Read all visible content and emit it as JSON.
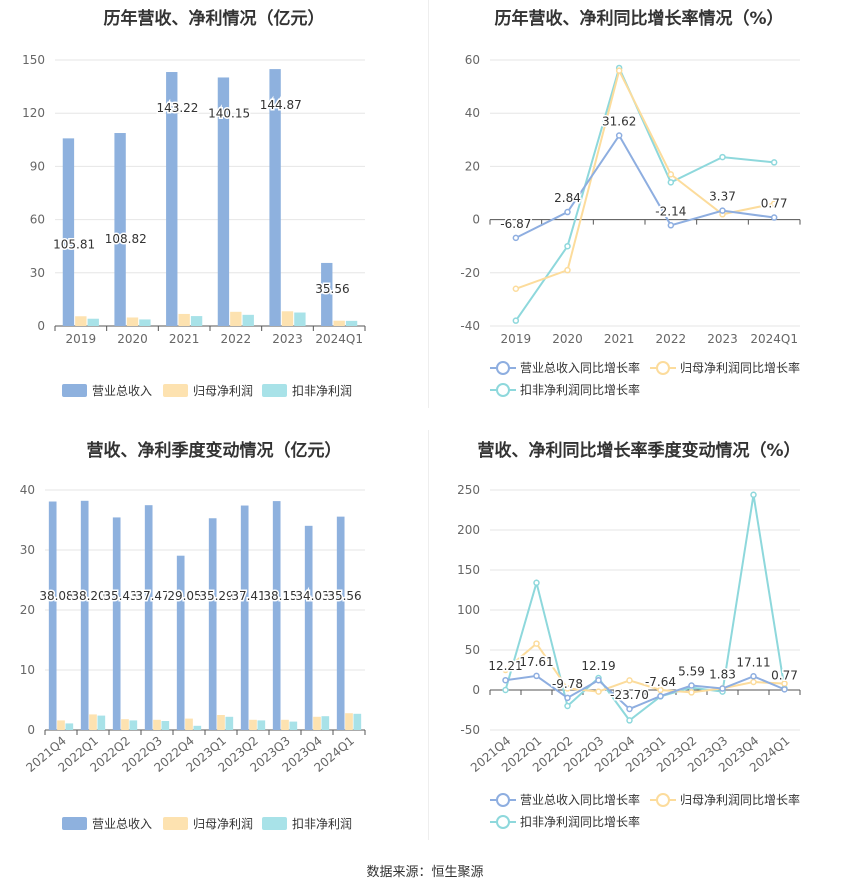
{
  "source": "数据来源：恒生聚源",
  "legend": {
    "bar": [
      "营业总收入",
      "归母净利润",
      "扣非净利润"
    ],
    "line": [
      "营业总收入同比增长率",
      "归母净利润同比增长率",
      "扣非净利润同比增长率"
    ]
  },
  "colors": {
    "revenue": "#8eb1de",
    "net": "#fde2b0",
    "deducted": "#a8e2e8",
    "line_revenue": "#8eaee0",
    "line_net": "#fcdc9c",
    "line_deducted": "#8ed8dc"
  },
  "chart_data": [
    {
      "type": "bar",
      "title": "历年营收、净利情况（亿元）",
      "categories": [
        "2019",
        "2020",
        "2021",
        "2022",
        "2023",
        "2024Q1"
      ],
      "ylim": [
        0,
        150
      ],
      "yticks": [
        0,
        30,
        60,
        90,
        120,
        150
      ],
      "series": [
        {
          "name": "营业总收入",
          "values": [
            105.81,
            108.82,
            143.22,
            140.15,
            144.87,
            35.56
          ]
        },
        {
          "name": "归母净利润",
          "values": [
            5.5,
            4.8,
            6.8,
            8.0,
            8.3,
            3.0
          ]
        },
        {
          "name": "扣非净利润",
          "values": [
            4.1,
            3.7,
            5.6,
            6.3,
            7.6,
            2.9
          ]
        }
      ],
      "data_labels": [
        "105.81",
        "108.82",
        "143.22",
        "140.15",
        "144.87",
        "35.56"
      ]
    },
    {
      "type": "line",
      "title": "历年营收、净利同比增长率情况（%）",
      "categories": [
        "2019",
        "2020",
        "2021",
        "2022",
        "2023",
        "2024Q1"
      ],
      "ylim": [
        -40,
        60
      ],
      "yticks": [
        -40,
        -20,
        0,
        20,
        40,
        60
      ],
      "series": [
        {
          "name": "营业总收入同比增长率",
          "values": [
            -6.87,
            2.84,
            31.62,
            -2.14,
            3.37,
            0.77
          ]
        },
        {
          "name": "归母净利润同比增长率",
          "values": [
            -26,
            -19,
            56,
            17,
            2,
            6
          ]
        },
        {
          "name": "扣非净利润同比增长率",
          "values": [
            -38,
            -10,
            57,
            14,
            23.5,
            21.5
          ]
        }
      ],
      "data_labels": [
        "-6.87",
        "2.84",
        "31.62",
        "-2.14",
        "3.37",
        "0.77"
      ]
    },
    {
      "type": "bar",
      "title": "营收、净利季度变动情况（亿元）",
      "categories": [
        "2021Q4",
        "2022Q1",
        "2022Q2",
        "2022Q3",
        "2022Q4",
        "2023Q1",
        "2023Q2",
        "2023Q3",
        "2023Q4",
        "2024Q1"
      ],
      "ylim": [
        0,
        40
      ],
      "yticks": [
        0,
        10,
        20,
        30,
        40
      ],
      "series": [
        {
          "name": "营业总收入",
          "values": [
            38.08,
            38.2,
            35.43,
            37.47,
            29.05,
            35.29,
            37.41,
            38.15,
            34.03,
            35.56
          ]
        },
        {
          "name": "归母净利润",
          "values": [
            1.6,
            2.6,
            1.8,
            1.7,
            1.9,
            2.5,
            1.7,
            1.7,
            2.2,
            2.8
          ]
        },
        {
          "name": "扣非净利润",
          "values": [
            1.1,
            2.4,
            1.6,
            1.5,
            0.7,
            2.2,
            1.6,
            1.4,
            2.3,
            2.7
          ]
        }
      ],
      "data_labels": [
        "38.08",
        "38.20",
        "35.43",
        "37.47",
        "29.05",
        "35.29",
        "37.41",
        "38.15",
        "34.03",
        "35.56"
      ]
    },
    {
      "type": "line",
      "title": "营收、净利同比增长率季度变动情况（%）",
      "categories": [
        "2021Q4",
        "2022Q1",
        "2022Q2",
        "2022Q3",
        "2022Q4",
        "2023Q1",
        "2023Q2",
        "2023Q3",
        "2023Q4",
        "2024Q1"
      ],
      "ylim": [
        -50,
        250
      ],
      "yticks": [
        -50,
        0,
        50,
        100,
        150,
        200,
        250
      ],
      "series": [
        {
          "name": "营业总收入同比增长率",
          "values": [
            12.21,
            17.61,
            -9.78,
            12.19,
            -23.7,
            -7.64,
            5.59,
            1.83,
            17.11,
            0.77
          ]
        },
        {
          "name": "归母净利润同比增长率",
          "values": [
            25,
            58,
            2,
            -2,
            12,
            0,
            -3,
            2,
            10,
            8
          ]
        },
        {
          "name": "扣非净利润同比增长率",
          "values": [
            0,
            134,
            -20,
            15,
            -38,
            -8,
            3,
            -2,
            244,
            2
          ]
        }
      ],
      "data_labels": [
        "12.21",
        "17.61",
        "-9.78",
        "12.19",
        "-23.70",
        "-7.64",
        "5.59",
        "1.83",
        "17.11",
        "0.77"
      ]
    }
  ]
}
